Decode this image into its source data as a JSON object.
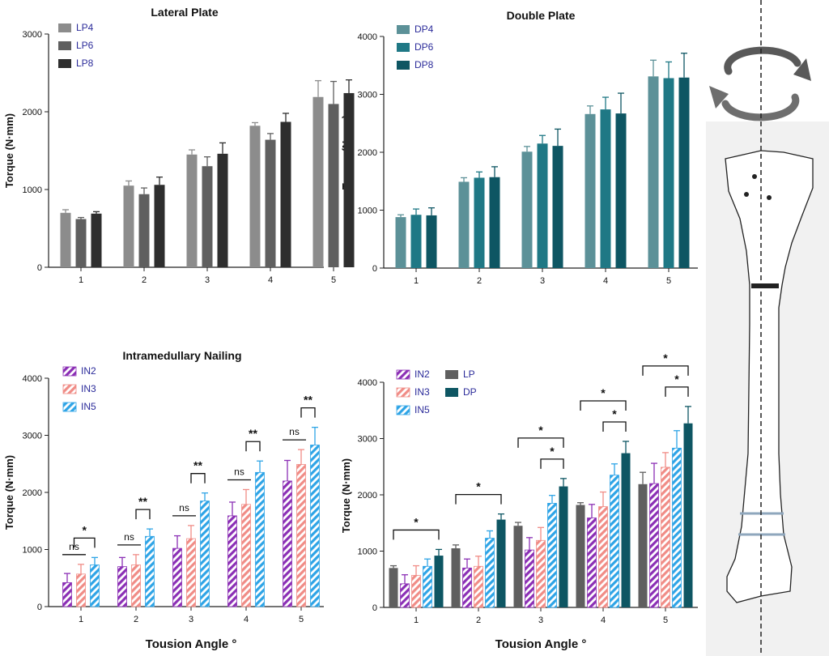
{
  "figure": {
    "panel_bg": "#f2f2f2",
    "bone_outline": "#222222",
    "bone_fill": "#ffffff",
    "axis_line": "#222222",
    "ring_color": "#8fa7bd",
    "arrow_color": "#555555"
  },
  "chart_data": [
    {
      "id": "lp",
      "type": "bar",
      "title": "Lateral Plate",
      "xlabel": "",
      "ylabel": "Torque (N·mm)",
      "ylim": [
        0,
        3000
      ],
      "yticks": [
        0,
        1000,
        2000,
        3000
      ],
      "categories": [
        "1",
        "2",
        "3",
        "4",
        "5"
      ],
      "legend_position": "top-left",
      "series": [
        {
          "name": "LP4",
          "color": "#8c8c8c",
          "pattern": "solid",
          "values": [
            700,
            1050,
            1450,
            1820,
            2190
          ],
          "errors": [
            40,
            60,
            60,
            40,
            210
          ]
        },
        {
          "name": "LP6",
          "color": "#5f5f5f",
          "pattern": "solid",
          "values": [
            620,
            940,
            1300,
            1640,
            2100
          ],
          "errors": [
            20,
            80,
            120,
            80,
            290
          ]
        },
        {
          "name": "LP8",
          "color": "#2e2e2e",
          "pattern": "solid",
          "values": [
            690,
            1060,
            1460,
            1870,
            2240
          ],
          "errors": [
            25,
            100,
            140,
            110,
            170
          ]
        }
      ]
    },
    {
      "id": "dp",
      "type": "bar",
      "title": "Double Plate",
      "xlabel": "",
      "ylabel": "Torque (N·mm)",
      "ylim": [
        0,
        4000
      ],
      "yticks": [
        0,
        1000,
        2000,
        3000,
        4000
      ],
      "categories": [
        "1",
        "2",
        "3",
        "4",
        "5"
      ],
      "legend_position": "top-left",
      "series": [
        {
          "name": "DP4",
          "color": "#5c9198",
          "pattern": "solid",
          "values": [
            880,
            1490,
            2010,
            2660,
            3310
          ],
          "errors": [
            40,
            70,
            90,
            140,
            280
          ]
        },
        {
          "name": "DP6",
          "color": "#1f7885",
          "pattern": "solid",
          "values": [
            920,
            1560,
            2150,
            2740,
            3280
          ],
          "errors": [
            100,
            100,
            140,
            210,
            280
          ]
        },
        {
          "name": "DP8",
          "color": "#0e5663",
          "pattern": "solid",
          "values": [
            910,
            1570,
            2110,
            2670,
            3290
          ],
          "errors": [
            130,
            180,
            290,
            350,
            420
          ]
        }
      ]
    },
    {
      "id": "in",
      "type": "bar",
      "title": "Intramedullary Nailing",
      "xlabel": "Tousion Angle °",
      "ylabel": "Torque (N·mm)",
      "ylim": [
        0,
        4000
      ],
      "yticks": [
        0,
        1000,
        2000,
        3000,
        4000
      ],
      "categories": [
        "1",
        "2",
        "3",
        "4",
        "5"
      ],
      "legend_position": "top-left",
      "series": [
        {
          "name": "IN2",
          "color": "#8b2fb5",
          "pattern": "hatch",
          "values": [
            420,
            700,
            1020,
            1590,
            2200
          ],
          "errors": [
            160,
            160,
            220,
            240,
            360
          ]
        },
        {
          "name": "IN3",
          "color": "#f08c86",
          "pattern": "hatch",
          "values": [
            570,
            730,
            1190,
            1790,
            2490
          ],
          "errors": [
            170,
            180,
            230,
            260,
            260
          ]
        },
        {
          "name": "IN5",
          "color": "#2ea4e6",
          "pattern": "hatch",
          "values": [
            730,
            1230,
            1850,
            2350,
            2830
          ],
          "errors": [
            130,
            130,
            140,
            200,
            310
          ]
        }
      ],
      "annotations": [
        {
          "group": 0,
          "type": "line",
          "from": 0,
          "to": 1,
          "label": "ns"
        },
        {
          "group": 0,
          "type": "bracket",
          "from": 0.5,
          "to": 2,
          "label": "*"
        },
        {
          "group": 1,
          "type": "line",
          "from": 0,
          "to": 1,
          "label": "ns"
        },
        {
          "group": 1,
          "type": "bracket",
          "from": 1,
          "to": 2,
          "label": "**"
        },
        {
          "group": 2,
          "type": "line",
          "from": 0,
          "to": 1,
          "label": "ns"
        },
        {
          "group": 2,
          "type": "bracket",
          "from": 1,
          "to": 2,
          "label": "**"
        },
        {
          "group": 3,
          "type": "line",
          "from": 0,
          "to": 1,
          "label": "ns"
        },
        {
          "group": 3,
          "type": "bracket",
          "from": 1,
          "to": 2,
          "label": "**"
        },
        {
          "group": 4,
          "type": "line",
          "from": 0,
          "to": 1,
          "label": "ns"
        },
        {
          "group": 4,
          "type": "bracket",
          "from": 1,
          "to": 2,
          "label": "**"
        }
      ]
    },
    {
      "id": "cmp",
      "type": "bar",
      "title": "",
      "xlabel": "Tousion Angle °",
      "ylabel": "Torque (N·mm)",
      "ylim": [
        0,
        4000
      ],
      "yticks": [
        0,
        1000,
        2000,
        3000,
        4000
      ],
      "categories": [
        "1",
        "2",
        "3",
        "4",
        "5"
      ],
      "legend_position": "top-left",
      "series": [
        {
          "name": "LP",
          "color": "#5f5f5f",
          "pattern": "solid",
          "values": [
            700,
            1050,
            1450,
            1820,
            2190
          ],
          "errors": [
            40,
            60,
            60,
            40,
            210
          ]
        },
        {
          "name": "IN2",
          "color": "#8b2fb5",
          "pattern": "hatch",
          "values": [
            420,
            700,
            1020,
            1590,
            2200
          ],
          "errors": [
            160,
            160,
            220,
            240,
            360
          ]
        },
        {
          "name": "IN3",
          "color": "#f08c86",
          "pattern": "hatch",
          "values": [
            570,
            730,
            1190,
            1790,
            2490
          ],
          "errors": [
            170,
            180,
            230,
            260,
            260
          ]
        },
        {
          "name": "IN5",
          "color": "#2ea4e6",
          "pattern": "hatch",
          "values": [
            730,
            1230,
            1850,
            2350,
            2830
          ],
          "errors": [
            130,
            130,
            140,
            200,
            310
          ]
        },
        {
          "name": "DP",
          "color": "#0e5663",
          "pattern": "solid",
          "values": [
            920,
            1560,
            2150,
            2740,
            3270
          ],
          "errors": [
            110,
            100,
            140,
            210,
            300
          ]
        }
      ],
      "annotations": [
        {
          "group": 0,
          "type": "bracket",
          "from": 0,
          "to": 4,
          "label": "*"
        },
        {
          "group": 1,
          "type": "bracket",
          "from": 0,
          "to": 4,
          "label": "*"
        },
        {
          "group": 2,
          "type": "bracket",
          "from": 2,
          "to": 4,
          "label": "*"
        },
        {
          "group": 2,
          "type": "bracket",
          "from": 0,
          "to": 4,
          "label": "*"
        },
        {
          "group": 3,
          "type": "bracket",
          "from": 2,
          "to": 4,
          "label": "*"
        },
        {
          "group": 3,
          "type": "bracket",
          "from": 0,
          "to": 4,
          "label": "*"
        },
        {
          "group": 4,
          "type": "bracket",
          "from": 2,
          "to": 4,
          "label": "*"
        },
        {
          "group": 4,
          "type": "bracket",
          "from": 0,
          "to": 4,
          "label": "*"
        }
      ]
    }
  ]
}
